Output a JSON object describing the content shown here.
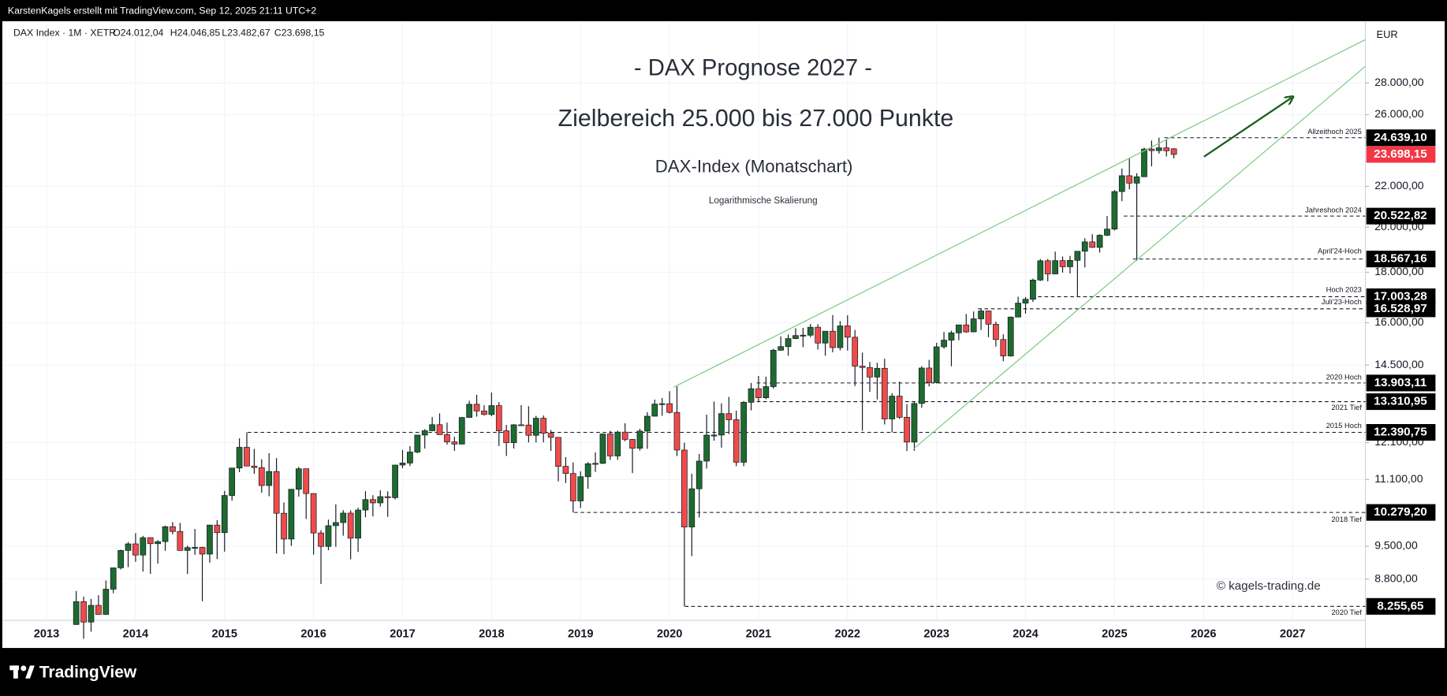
{
  "header": {
    "credit": "KarstenKagels erstellt mit TradingView.com, Sep 12, 2025 21:11 UTC+2"
  },
  "chart_data": {
    "type": "candlestick",
    "title": "- DAX Prognose 2027 -",
    "subtitle": "Zielbereich 25.000 bis 27.000 Punkte",
    "chart_label": "DAX-Index (Monatschart)",
    "note": "Logarithmische Skalierung",
    "watermark": "© kagels-trading.de",
    "symbol": "DAX Index · 1M · XETR",
    "ohlc_legend": [
      "O24.012,04",
      "H24.046,85",
      "L23.482,67",
      "C23.698,15"
    ],
    "currency": "EUR",
    "log_scale": true,
    "grid": true,
    "up_color": "#1e6b30",
    "down_color": "#ef4b4b",
    "categories": [
      "2013",
      null,
      null,
      null,
      null,
      null,
      null,
      null,
      null,
      null,
      null,
      null,
      "2014",
      null,
      null,
      null,
      null,
      null,
      null,
      null,
      null,
      null,
      null,
      null,
      "2015",
      null,
      null,
      null,
      null,
      null,
      null,
      null,
      null,
      null,
      null,
      null,
      "2016",
      null,
      null,
      null,
      null,
      null,
      null,
      null,
      null,
      null,
      null,
      null,
      "2017",
      null,
      null,
      null,
      null,
      null,
      null,
      null,
      null,
      null,
      null,
      null,
      "2018",
      null,
      null,
      null,
      null,
      null,
      null,
      null,
      null,
      null,
      null,
      null,
      "2019",
      null,
      null,
      null,
      null,
      null,
      null,
      null,
      null,
      null,
      null,
      null,
      "2020",
      null,
      null,
      null,
      null,
      null,
      null,
      null,
      null,
      null,
      null,
      null,
      "2021",
      null,
      null,
      null,
      null,
      null,
      null,
      null,
      null,
      null,
      null,
      null,
      "2022",
      null,
      null,
      null,
      null,
      null,
      null,
      null,
      null,
      null,
      null,
      null,
      "2023",
      null,
      null,
      null,
      null,
      null,
      null,
      null,
      null,
      null,
      null,
      null,
      "2024",
      null,
      null,
      null,
      null,
      null,
      null,
      null,
      null,
      null,
      null,
      null,
      "2025",
      null,
      null,
      null,
      null,
      null,
      null,
      null,
      null,
      null,
      null,
      null,
      "2026",
      null,
      null,
      null,
      null,
      null,
      null,
      null,
      null,
      null,
      null,
      null,
      "2027",
      null,
      null,
      null,
      null,
      null,
      null,
      null,
      null,
      null,
      null,
      null
    ],
    "open": [
      null,
      null,
      null,
      null,
      7914,
      8348,
      7959,
      8276,
      8103,
      8594,
      9033,
      9406,
      9552,
      9306,
      9692,
      9556,
      9603,
      9943,
      9833,
      9407,
      9470,
      9474,
      9327,
      9980,
      9806,
      10694,
      11402,
      11966,
      11454,
      11414,
      10945,
      11309,
      10259,
      9660,
      10850,
      11382,
      10743,
      9798,
      9495,
      9966,
      10039,
      10263,
      9680,
      10337,
      10593,
      10511,
      10665,
      10640,
      11481,
      11535,
      11834,
      12313,
      12438,
      12615,
      12325,
      12118,
      12056,
      12829,
      13230,
      13024,
      12918,
      13189,
      12436,
      12097,
      12612,
      12605,
      12306,
      12806,
      12364,
      12247,
      11447,
      11257,
      10559,
      11173,
      11516,
      11526,
      12344,
      11727,
      12399,
      12189,
      11939,
      12428,
      12867,
      13236,
      13249,
      12981,
      11890,
      9936,
      10862,
      11587,
      12311,
      12313,
      12945,
      12761,
      11556,
      13291,
      13719,
      13433,
      13786,
      15008,
      15136,
      15421,
      15531,
      15544,
      15835,
      15261,
      15689,
      15100,
      15885,
      15471,
      14461,
      14415,
      14098,
      14388,
      12784,
      13484,
      12835,
      12114,
      13254,
      14397,
      13924,
      15128,
      15365,
      15629,
      15922,
      15664,
      16148,
      16447,
      15947,
      15387,
      14810,
      16215,
      16752,
      16904,
      17678,
      18492,
      17932,
      18498,
      18235,
      18509,
      18907,
      19325,
      19078,
      19626,
      19909,
      21732,
      22551,
      22163,
      22497,
      23997,
      23910,
      24065,
      24012,
      null,
      null,
      null,
      null,
      null,
      null,
      null,
      null,
      null,
      null,
      null,
      null,
      null,
      null,
      null,
      null,
      null,
      null,
      null,
      null,
      null,
      null,
      null,
      null,
      null,
      null,
      null
    ],
    "high": [
      null,
      null,
      null,
      null,
      8558,
      8446,
      8402,
      8474,
      8770,
      9033,
      9424,
      9594,
      9794,
      9732,
      9696,
      9634,
      9968,
      10050,
      10032,
      9515,
      9891,
      9490,
      9988,
      10093,
      10810,
      11402,
      12219,
      12391,
      11921,
      11636,
      11802,
      11670,
      10522,
      10850,
      11430,
      11386,
      10743,
      9860,
      10109,
      10474,
      10334,
      10331,
      10393,
      10803,
      10701,
      10827,
      10800,
      11482,
      11893,
      11999,
      12313,
      12486,
      12841,
      12952,
      12676,
      12264,
      12841,
      13340,
      13526,
      13199,
      13597,
      13297,
      12611,
      12629,
      13204,
      13170,
      12877,
      12887,
      12459,
      12247,
      11696,
      11551,
      11314,
      11557,
      11823,
      12357,
      12435,
      12438,
      12656,
      12200,
      12494,
      12989,
      13374,
      13425,
      13640,
      13795,
      12095,
      11251,
      11781,
      12913,
      13314,
      13260,
      13460,
      13035,
      13330,
      13904,
      14132,
      14109,
      15059,
      15502,
      15570,
      15802,
      15810,
      15953,
      15945,
      15689,
      16290,
      16061,
      16285,
      15736,
      14925,
      14604,
      14575,
      14711,
      13577,
      13948,
      13235,
      13321,
      14460,
      14675,
      15270,
      15659,
      15706,
      15923,
      16331,
      16427,
      16529,
      16468,
      16045,
      15575,
      16237,
      17003,
      16990,
      17736,
      18567,
      18567,
      18892,
      18675,
      18702,
      18907,
      19492,
      19675,
      19669,
      20523,
      21800,
      22935,
      23476,
      22685,
      24073,
      24479,
      24639,
      24548,
      24046,
      null,
      null,
      null,
      null,
      null,
      null,
      null,
      null,
      null,
      null,
      null,
      null,
      null,
      null,
      null,
      null,
      null,
      null,
      null,
      null,
      null,
      null,
      null,
      null,
      null,
      null,
      null
    ],
    "low": [
      null,
      null,
      null,
      null,
      7907,
      7655,
      7783,
      8103,
      8092,
      8513,
      8998,
      9047,
      9161,
      8955,
      8907,
      9120,
      9397,
      9768,
      9401,
      8903,
      9311,
      8355,
      9143,
      9219,
      9382,
      10567,
      11293,
      11454,
      11249,
      10765,
      10676,
      9338,
      9325,
      9508,
      10665,
      10124,
      9314,
      8699,
      9413,
      9487,
      9737,
      9214,
      9373,
      10164,
      10185,
      10421,
      10174,
      10598,
      11397,
      11452,
      11803,
      11931,
      12425,
      12325,
      12042,
      11868,
      12047,
      12829,
      12853,
      12889,
      12868,
      12003,
      11727,
      11932,
      12578,
      12104,
      12105,
      12106,
      11865,
      11051,
      11009,
      10279,
      10387,
      10864,
      11299,
      11510,
      11620,
      11620,
      12135,
      11266,
      11874,
      11924,
      12861,
      12881,
      12948,
      11724,
      8256,
      9283,
      10160,
      11386,
      12153,
      11957,
      12342,
      11451,
      11450,
      13042,
      13311,
      13388,
      13723,
      14994,
      14816,
      15402,
      15114,
      15472,
      15033,
      14819,
      14934,
      15005,
      14995,
      13807,
      12439,
      13619,
      13381,
      12620,
      12391,
      12785,
      11863,
      11869,
      13121,
      13792,
      13888,
      15062,
      14458,
      15363,
      15629,
      15656,
      15732,
      15469,
      15138,
      14630,
      14785,
      16213,
      16345,
      16797,
      17643,
      17626,
      17923,
      17992,
      17952,
      17025,
      18208,
      19055,
      18847,
      19586,
      19850,
      21250,
      21844,
      18490,
      22480,
      23051,
      23737,
      23585,
      23483,
      null,
      null,
      null,
      null,
      null,
      null,
      null,
      null,
      null,
      null,
      null,
      null,
      null,
      null,
      null,
      null,
      null,
      null,
      null,
      null,
      null,
      null,
      null,
      null,
      null,
      null,
      null
    ],
    "close": [
      null,
      null,
      null,
      null,
      8348,
      7959,
      8276,
      8103,
      8594,
      9033,
      9406,
      9552,
      9306,
      9692,
      9556,
      9603,
      9943,
      9833,
      9407,
      9470,
      9474,
      9327,
      9980,
      9806,
      10694,
      11402,
      11966,
      11454,
      11414,
      10945,
      11309,
      10259,
      9660,
      10850,
      11382,
      10743,
      9798,
      9495,
      9966,
      10039,
      10263,
      9680,
      10337,
      10593,
      10511,
      10665,
      10640,
      11481,
      11535,
      11834,
      12313,
      12438,
      12615,
      12325,
      12118,
      12056,
      12829,
      13230,
      13024,
      12918,
      13189,
      12436,
      12097,
      12612,
      12605,
      12306,
      12806,
      12364,
      12247,
      11447,
      11257,
      10559,
      11173,
      11516,
      11526,
      12344,
      11727,
      12399,
      12189,
      11939,
      12428,
      12867,
      13236,
      13249,
      12981,
      11890,
      9936,
      10862,
      11587,
      12311,
      12313,
      12945,
      12761,
      11556,
      13291,
      13719,
      13433,
      13786,
      15008,
      15136,
      15421,
      15531,
      15544,
      15835,
      15261,
      15689,
      15100,
      15885,
      15471,
      14461,
      14415,
      14098,
      14388,
      12784,
      13484,
      12835,
      12114,
      13254,
      14397,
      13924,
      15128,
      15365,
      15629,
      15922,
      15664,
      16148,
      16447,
      15947,
      15387,
      14810,
      16215,
      16752,
      16904,
      17678,
      18492,
      17932,
      18498,
      18235,
      18509,
      18907,
      19325,
      19078,
      19626,
      19909,
      21732,
      22551,
      22163,
      22497,
      23997,
      23910,
      24065,
      23902,
      23698,
      null,
      null,
      null,
      null,
      null,
      null,
      null,
      null,
      null,
      null,
      null,
      null,
      null,
      null,
      null,
      null,
      null,
      null,
      null,
      null,
      null,
      null,
      null,
      null,
      null,
      null,
      null
    ],
    "ylim": [
      7990,
      32200
    ],
    "yticks": [
      {
        "value": 8800,
        "label": "8.800,00"
      },
      {
        "value": 9500,
        "label": "9.500,00"
      },
      {
        "value": 11100,
        "label": "11.100,00"
      },
      {
        "value": 12100,
        "label": "12.100,00"
      },
      {
        "value": 14500,
        "label": "14.500,00"
      },
      {
        "value": 16000,
        "label": "16.000,00"
      },
      {
        "value": 18000,
        "label": "18.000,00"
      },
      {
        "value": 20000,
        "label": "20.000,00"
      },
      {
        "value": 22000,
        "label": "22.000,00"
      },
      {
        "value": 26000,
        "label": "26.000,00"
      },
      {
        "value": 28000,
        "label": "28.000,00"
      }
    ],
    "levels": [
      {
        "name": "Allzeithoch 2025",
        "value": 24639.1,
        "label": "24.639,10"
      },
      {
        "name": "Jahreshoch 2024",
        "value": 20522.82,
        "label": "20.522,82"
      },
      {
        "name": "April'24-Hoch",
        "value": 18567.16,
        "label": "18.567,16"
      },
      {
        "name": "Hoch 2023",
        "value": 17003.28,
        "label": "17.003,28"
      },
      {
        "name": "Juli'23-Hoch",
        "value": 16528.97,
        "label": "16.528,97"
      },
      {
        "name": "2020 Hoch",
        "value": 13903.11,
        "label": "13.903,11"
      },
      {
        "name": "2021 Tief",
        "value": 13310.95,
        "label": "13.310,95"
      },
      {
        "name": "2015 Hoch",
        "value": 12390.75,
        "label": "12.390,75"
      },
      {
        "name": "2018 Tief",
        "value": 10279.2,
        "label": "10.279,20"
      },
      {
        "name": "2020 Tief",
        "value": 8255.65,
        "label": "8.255,65"
      }
    ],
    "last_price": {
      "value": 23698.15,
      "label": "23.698,15",
      "color": "#f23645"
    }
  },
  "footer": {
    "brand": "TradingView"
  }
}
